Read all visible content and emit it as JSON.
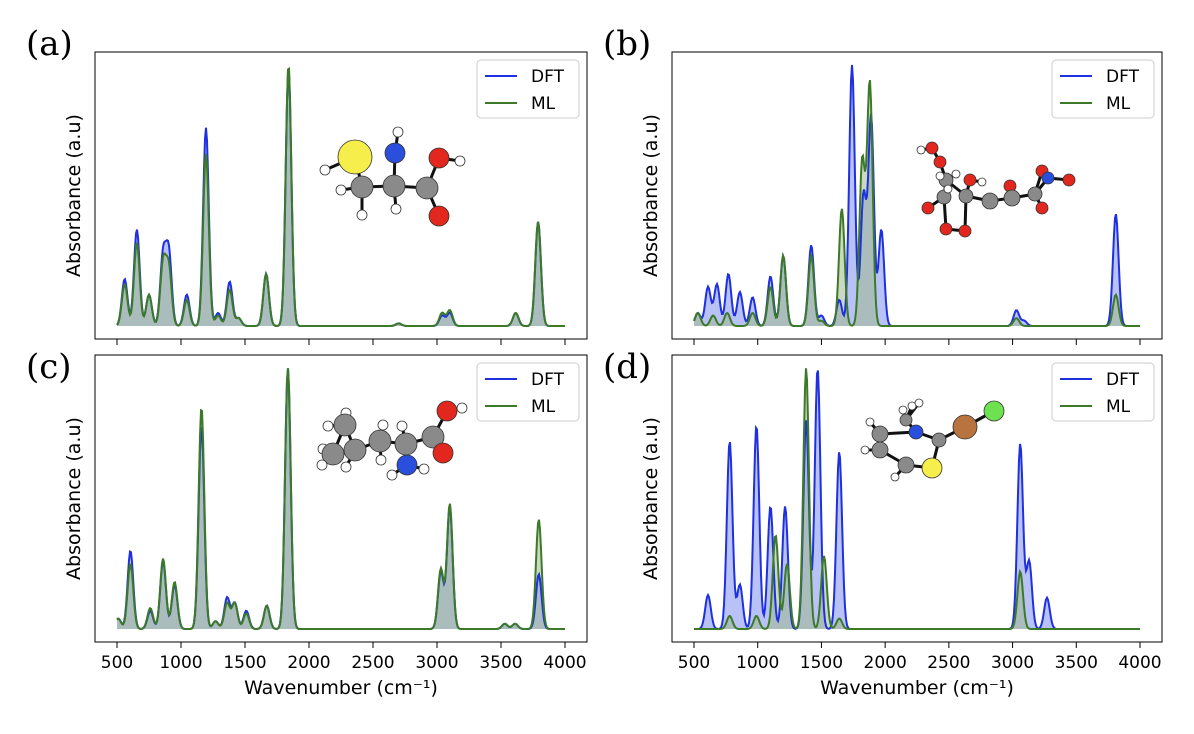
{
  "chart_data": [
    {
      "panel": "(a)",
      "type": "line",
      "xlabel": "Wavenumber (cm⁻¹)",
      "ylabel": "Absorbance (a.u)",
      "xlim": [
        500,
        4000
      ],
      "xticks": [
        "500",
        "1000",
        "1500",
        "2000",
        "2500",
        "3000",
        "3500",
        "4000"
      ],
      "show_x_tick_labels": false,
      "legend": [
        "DFT",
        "ML"
      ],
      "legend_position": "top-right",
      "molecule": "a",
      "series": [
        {
          "name": "DFT",
          "color": "#1f30e0",
          "fill": "#7f8ff0",
          "peaks": [
            [
              560,
              0.18
            ],
            [
              655,
              0.37
            ],
            [
              750,
              0.12
            ],
            [
              860,
              0.27
            ],
            [
              905,
              0.28
            ],
            [
              1045,
              0.12
            ],
            [
              1195,
              0.76
            ],
            [
              1290,
              0.05
            ],
            [
              1380,
              0.17
            ],
            [
              1450,
              0.03
            ],
            [
              1665,
              0.2
            ],
            [
              1840,
              0.99
            ],
            [
              2700,
              0.01
            ],
            [
              3040,
              0.04
            ],
            [
              3100,
              0.05
            ],
            [
              3615,
              0.05
            ],
            [
              3790,
              0.4
            ]
          ]
        },
        {
          "name": "ML",
          "color": "#3c7a28",
          "fill": "#9fb98d",
          "peaks": [
            [
              560,
              0.16
            ],
            [
              655,
              0.32
            ],
            [
              750,
              0.12
            ],
            [
              860,
              0.24
            ],
            [
              905,
              0.22
            ],
            [
              1045,
              0.1
            ],
            [
              1195,
              0.66
            ],
            [
              1290,
              0.04
            ],
            [
              1380,
              0.14
            ],
            [
              1450,
              0.03
            ],
            [
              1665,
              0.2
            ],
            [
              1840,
              1.0
            ],
            [
              2700,
              0.01
            ],
            [
              3040,
              0.05
            ],
            [
              3100,
              0.06
            ],
            [
              3615,
              0.05
            ],
            [
              3790,
              0.4
            ]
          ]
        }
      ]
    },
    {
      "panel": "(b)",
      "type": "line",
      "xlabel": "Wavenumber (cm⁻¹)",
      "ylabel": "Absorbance (a.u)",
      "xlim": [
        500,
        4000
      ],
      "xticks": [
        "500",
        "1000",
        "1500",
        "2000",
        "2500",
        "3000",
        "3500",
        "4000"
      ],
      "show_x_tick_labels": false,
      "legend": [
        "DFT",
        "ML"
      ],
      "legend_position": "top-right",
      "molecule": "b",
      "series": [
        {
          "name": "DFT",
          "color": "#1f30e0",
          "fill": "#7f8ff0",
          "peaks": [
            [
              530,
              0.05
            ],
            [
              610,
              0.15
            ],
            [
              680,
              0.16
            ],
            [
              770,
              0.2
            ],
            [
              860,
              0.13
            ],
            [
              960,
              0.11
            ],
            [
              1100,
              0.19
            ],
            [
              1200,
              0.27
            ],
            [
              1420,
              0.31
            ],
            [
              1500,
              0.04
            ],
            [
              1640,
              0.1
            ],
            [
              1740,
              1.0
            ],
            [
              1830,
              0.5
            ],
            [
              1890,
              0.8
            ],
            [
              1970,
              0.37
            ],
            [
              3030,
              0.06
            ],
            [
              3090,
              0.02
            ],
            [
              3810,
              0.43
            ]
          ]
        },
        {
          "name": "ML",
          "color": "#3c7a28",
          "fill": "#9fb98d",
          "peaks": [
            [
              530,
              0.05
            ],
            [
              650,
              0.04
            ],
            [
              760,
              0.05
            ],
            [
              960,
              0.05
            ],
            [
              1100,
              0.15
            ],
            [
              1200,
              0.27
            ],
            [
              1420,
              0.27
            ],
            [
              1500,
              0.02
            ],
            [
              1660,
              0.45
            ],
            [
              1820,
              0.63
            ],
            [
              1880,
              0.93
            ],
            [
              3030,
              0.03
            ],
            [
              3810,
              0.12
            ]
          ]
        }
      ]
    },
    {
      "panel": "(c)",
      "type": "line",
      "xlabel": "Wavenumber (cm⁻¹)",
      "ylabel": "Absorbance (a.u)",
      "xlim": [
        500,
        4000
      ],
      "xticks": [
        "500",
        "1000",
        "1500",
        "2000",
        "2500",
        "3000",
        "3500",
        "4000"
      ],
      "show_x_tick_labels": true,
      "legend": [
        "DFT",
        "ML"
      ],
      "legend_position": "top-right",
      "molecule": "c",
      "series": [
        {
          "name": "DFT",
          "color": "#1f30e0",
          "fill": "#7f8ff0",
          "peaks": [
            [
              510,
              0.04
            ],
            [
              605,
              0.3
            ],
            [
              760,
              0.07
            ],
            [
              860,
              0.26
            ],
            [
              950,
              0.17
            ],
            [
              1160,
              0.78
            ],
            [
              1270,
              0.03
            ],
            [
              1360,
              0.12
            ],
            [
              1420,
              0.1
            ],
            [
              1510,
              0.07
            ],
            [
              1670,
              0.09
            ],
            [
              1835,
              1.0
            ],
            [
              3030,
              0.22
            ],
            [
              3100,
              0.47
            ],
            [
              3530,
              0.02
            ],
            [
              3610,
              0.02
            ],
            [
              3795,
              0.21
            ]
          ]
        },
        {
          "name": "ML",
          "color": "#3c7a28",
          "fill": "#9fb98d",
          "peaks": [
            [
              510,
              0.04
            ],
            [
              605,
              0.25
            ],
            [
              760,
              0.08
            ],
            [
              860,
              0.27
            ],
            [
              950,
              0.18
            ],
            [
              1160,
              0.85
            ],
            [
              1270,
              0.03
            ],
            [
              1360,
              0.1
            ],
            [
              1420,
              0.1
            ],
            [
              1510,
              0.06
            ],
            [
              1670,
              0.09
            ],
            [
              1835,
              1.0
            ],
            [
              3030,
              0.23
            ],
            [
              3100,
              0.48
            ],
            [
              3530,
              0.02
            ],
            [
              3610,
              0.02
            ],
            [
              3795,
              0.42
            ]
          ]
        }
      ]
    },
    {
      "panel": "(d)",
      "type": "line",
      "xlabel": "Wavenumber (cm⁻¹)",
      "ylabel": "Absorbance (a.u)",
      "xlim": [
        500,
        4000
      ],
      "xticks": [
        "500",
        "1000",
        "1500",
        "2000",
        "2500",
        "3000",
        "3500",
        "4000"
      ],
      "show_x_tick_labels": true,
      "legend": [
        "DFT",
        "ML"
      ],
      "legend_position": "top-right",
      "molecule": "d",
      "series": [
        {
          "name": "DFT",
          "color": "#1f30e0",
          "fill": "#7f8ff0",
          "peaks": [
            [
              610,
              0.13
            ],
            [
              780,
              0.72
            ],
            [
              860,
              0.17
            ],
            [
              990,
              0.78
            ],
            [
              1100,
              0.47
            ],
            [
              1215,
              0.47
            ],
            [
              1380,
              0.8
            ],
            [
              1470,
              1.0
            ],
            [
              1640,
              0.68
            ],
            [
              3060,
              0.71
            ],
            [
              3130,
              0.26
            ],
            [
              3270,
              0.12
            ]
          ]
        },
        {
          "name": "ML",
          "color": "#3c7a28",
          "fill": "#9fb98d",
          "peaks": [
            [
              780,
              0.05
            ],
            [
              990,
              0.05
            ],
            [
              1140,
              0.36
            ],
            [
              1230,
              0.25
            ],
            [
              1380,
              1.0
            ],
            [
              1520,
              0.28
            ],
            [
              1640,
              0.04
            ],
            [
              3060,
              0.22
            ]
          ]
        }
      ]
    }
  ]
}
